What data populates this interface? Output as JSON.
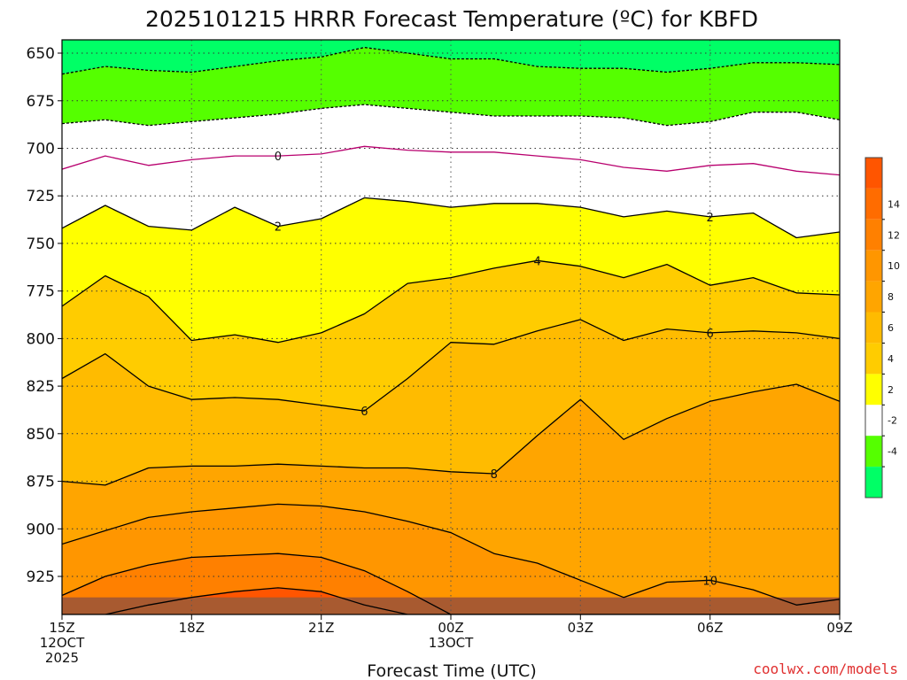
{
  "chart_data": {
    "type": "contour",
    "title": "2025101215 HRRR Forecast Temperature (ºC) for KBFD",
    "xlabel": "Forecast Time (UTC)",
    "credit": "coolwx.com/models",
    "y_axis": {
      "scale": "pressure (hPa), inverted",
      "ylim": [
        945,
        643
      ],
      "ticks": [
        "650",
        "675",
        "700",
        "725",
        "750",
        "775",
        "800",
        "825",
        "850",
        "875",
        "900",
        "925"
      ]
    },
    "x_axis": {
      "range_hours_from_15Z": [
        0,
        18
      ],
      "ticks": [
        {
          "hour": 0,
          "lines": [
            "15Z",
            "12OCT",
            "2025"
          ]
        },
        {
          "hour": 3,
          "lines": [
            "18Z"
          ]
        },
        {
          "hour": 6,
          "lines": [
            "21Z"
          ]
        },
        {
          "hour": 9,
          "lines": [
            "00Z",
            "13OCT"
          ]
        },
        {
          "hour": 12,
          "lines": [
            "03Z"
          ]
        },
        {
          "hour": 15,
          "lines": [
            "06Z"
          ]
        },
        {
          "hour": 18,
          "lines": [
            "09Z"
          ]
        }
      ]
    },
    "grid": true,
    "colorbar": {
      "location": "right",
      "bins": [
        {
          "color": "#00ff66",
          "label": ""
        },
        {
          "color": "#55ff00",
          "label": "-4"
        },
        {
          "color": "#ffffff",
          "label": "-2"
        },
        {
          "color": "#ffff00",
          "label": "2"
        },
        {
          "color": "#ffcc00",
          "label": "4"
        },
        {
          "color": "#ffbb00",
          "label": "6"
        },
        {
          "color": "#ffa500",
          "label": "8"
        },
        {
          "color": "#ff9600",
          "label": "10"
        },
        {
          "color": "#ff8000",
          "label": "12"
        },
        {
          "color": "#ff6c00",
          "label": "14"
        },
        {
          "color": "#ff5500",
          "label": ""
        }
      ]
    },
    "hours": [
      0,
      1,
      2,
      3,
      4,
      5,
      6,
      7,
      8,
      9,
      10,
      11,
      12,
      13,
      14,
      15,
      16,
      17,
      18
    ],
    "contours": [
      {
        "value": -4,
        "label": "",
        "dashed": true,
        "color": "#000000",
        "p": [
          661,
          657,
          659,
          660,
          657,
          654,
          652,
          647,
          650,
          653,
          653,
          657,
          658,
          658,
          660,
          658,
          655,
          655,
          656
        ]
      },
      {
        "value": -2,
        "label": "",
        "dashed": true,
        "color": "#000000",
        "p": [
          687,
          685,
          688,
          686,
          684,
          682,
          679,
          677,
          679,
          681,
          683,
          683,
          683,
          684,
          688,
          686,
          681,
          681,
          685
        ]
      },
      {
        "value": 0,
        "label": "0",
        "dashed": false,
        "color": "#b8006e",
        "p": [
          711,
          704,
          709,
          706,
          704,
          704,
          703,
          699,
          701,
          702,
          702,
          704,
          706,
          710,
          712,
          709,
          708,
          712,
          714
        ]
      },
      {
        "value": 2,
        "label": "2",
        "dashed": false,
        "color": "#000000",
        "p": [
          742,
          730,
          741,
          743,
          731,
          741,
          737,
          726,
          728,
          731,
          729,
          729,
          731,
          736,
          733,
          736,
          734,
          747,
          744
        ]
      },
      {
        "value": 4,
        "label": "4",
        "dashed": false,
        "color": "#000000",
        "p": [
          783,
          767,
          778,
          801,
          798,
          802,
          797,
          787,
          771,
          768,
          763,
          759,
          762,
          768,
          761,
          772,
          768,
          776,
          777
        ]
      },
      {
        "value": 6,
        "label": "6",
        "dashed": false,
        "color": "#000000",
        "p": [
          821,
          808,
          825,
          832,
          831,
          832,
          835,
          838,
          821,
          802,
          803,
          796,
          790,
          801,
          795,
          797,
          796,
          797,
          800
        ]
      },
      {
        "value": 8,
        "label": "8",
        "dashed": false,
        "color": "#000000",
        "p": [
          875,
          877,
          868,
          867,
          867,
          866,
          867,
          868,
          868,
          870,
          871,
          851,
          832,
          853,
          842,
          833,
          828,
          824,
          833
        ]
      },
      {
        "value": 10,
        "label": "10",
        "dashed": false,
        "color": "#000000",
        "p": [
          908,
          901,
          894,
          891,
          889,
          887,
          888,
          891,
          896,
          902,
          913,
          918,
          927,
          936,
          928,
          927,
          932,
          940,
          937
        ]
      },
      {
        "value": 12,
        "label": "",
        "dashed": false,
        "color": "#000000",
        "p": [
          935,
          925,
          919,
          915,
          914,
          913,
          915,
          922,
          933,
          945,
          945,
          945,
          945,
          945,
          945,
          945,
          945,
          945,
          945
        ]
      },
      {
        "value": 14,
        "label": "",
        "dashed": false,
        "color": "#000000",
        "p": [
          945,
          945,
          940,
          936,
          933,
          931,
          933,
          940,
          945,
          945,
          945,
          945,
          945,
          945,
          945,
          945,
          945,
          945,
          945
        ]
      }
    ],
    "fills_top_to_bottom": [
      "#00ff66",
      "#55ff00",
      "#ffffff",
      "#ffffff",
      "#ffff00",
      "#ffcc00",
      "#ffbb00",
      "#ffa500",
      "#ff9600",
      "#ff8000",
      "#ff5500"
    ],
    "ground_color": "#a85a30"
  }
}
